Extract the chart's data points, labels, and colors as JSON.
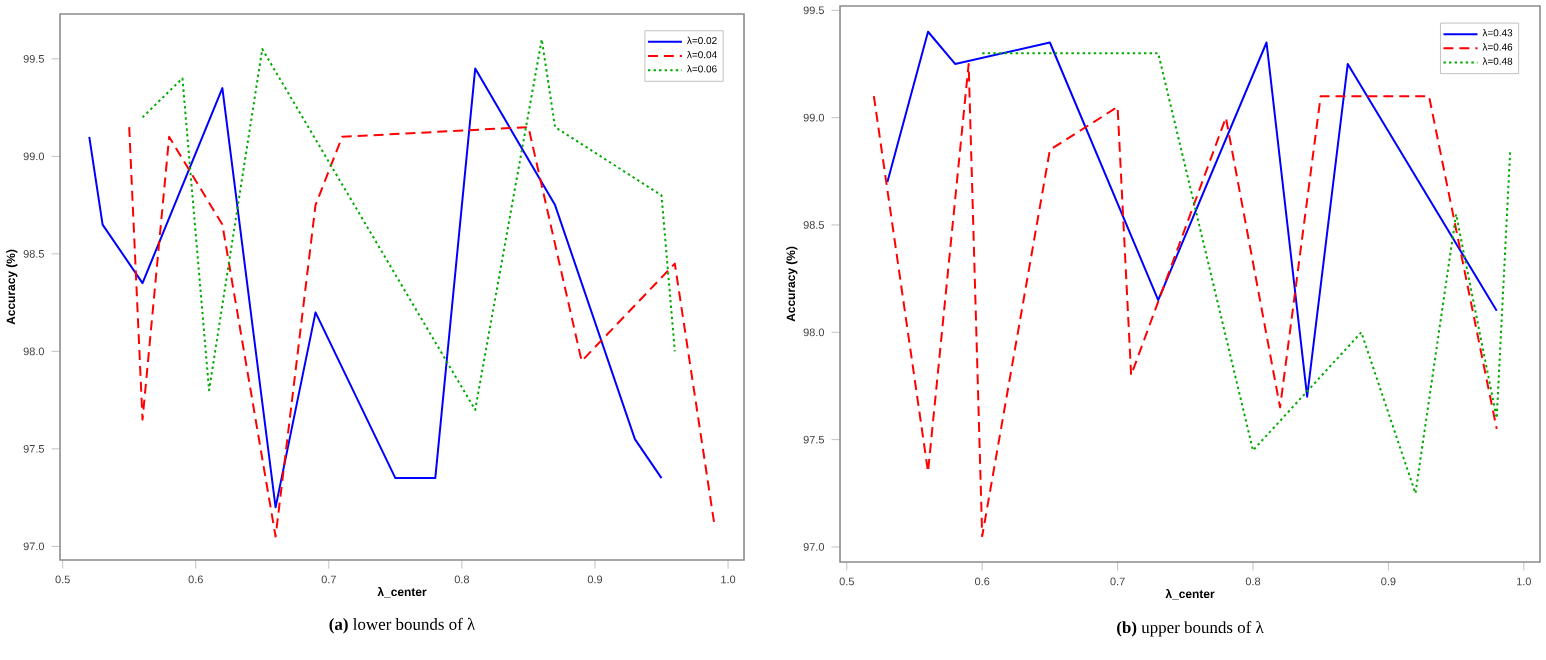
{
  "chart_data": [
    {
      "type": "line",
      "title": "**(a)** lower bounds of  λ",
      "xlabel": "λ_center",
      "ylabel": "Accuracy (%)",
      "xlim": [
        0.498,
        1.012
      ],
      "ylim": [
        96.93,
        99.73
      ],
      "xticks": [
        0.5,
        0.6,
        0.7,
        0.8,
        0.9,
        {
          "value": 1.0,
          "label": "1.0"
        }
      ],
      "yticks": [
        {
          "value": 97.0,
          "label": "97.0"
        },
        97.5,
        {
          "value": 98.0,
          "label": "98.0"
        },
        98.5,
        {
          "value": 99.0,
          "label": "99.0"
        },
        99.5
      ],
      "legend": "top right",
      "grid": false,
      "series": [
        {
          "name": "λ=0.02",
          "color": "#0000ff",
          "line_style": "solid",
          "x": [
            0.52,
            0.53,
            0.56,
            0.62,
            0.66,
            0.69,
            0.75,
            0.78,
            0.81,
            0.87,
            0.93,
            0.95
          ],
          "values": [
            99.1,
            98.65,
            98.35,
            99.35,
            97.2,
            98.2,
            97.35,
            97.35,
            99.45,
            98.75,
            97.55,
            97.35
          ]
        },
        {
          "name": "λ=0.04",
          "color": "#ff0000",
          "line_style": "dashed",
          "x": [
            0.55,
            0.56,
            0.58,
            0.62,
            0.66,
            0.69,
            0.71,
            0.85,
            0.89,
            0.96,
            0.99
          ],
          "values": [
            99.15,
            97.65,
            99.1,
            98.65,
            97.05,
            98.75,
            99.1,
            99.15,
            97.95,
            98.45,
            97.1
          ]
        },
        {
          "name": "λ=0.06",
          "color": "#00aa00",
          "line_style": "dotted",
          "x": [
            0.56,
            0.59,
            0.61,
            0.65,
            0.81,
            0.86,
            0.87,
            0.95,
            0.96
          ],
          "values": [
            99.2,
            99.4,
            97.8,
            99.55,
            97.7,
            99.6,
            99.15,
            98.8,
            98.0
          ]
        }
      ]
    },
    {
      "type": "line",
      "title": "**(b)** upper bounds of  λ",
      "xlabel": "λ_center",
      "ylabel": "Accuracy (%)",
      "xlim": [
        0.495,
        1.012
      ],
      "ylim": [
        96.93,
        99.52
      ],
      "xticks": [
        0.5,
        0.6,
        0.7,
        0.8,
        0.9,
        {
          "value": 1.0,
          "label": "1.0"
        }
      ],
      "yticks": [
        {
          "value": 97.0,
          "label": "97.0"
        },
        97.5,
        {
          "value": 98.0,
          "label": "98.0"
        },
        98.5,
        {
          "value": 99.0,
          "label": "99.0"
        },
        99.5
      ],
      "legend": "top right",
      "grid": false,
      "series": [
        {
          "name": "λ=0.43",
          "color": "#0000ff",
          "line_style": "solid",
          "x": [
            0.53,
            0.56,
            0.58,
            0.65,
            0.73,
            0.81,
            0.84,
            0.87,
            0.98
          ],
          "values": [
            98.7,
            99.4,
            99.25,
            99.35,
            98.15,
            99.35,
            97.7,
            99.25,
            98.1
          ]
        },
        {
          "name": "λ=0.46",
          "color": "#ff0000",
          "line_style": "dashed",
          "x": [
            0.52,
            0.56,
            0.59,
            0.6,
            0.65,
            0.7,
            0.71,
            0.78,
            0.82,
            0.85,
            0.93,
            0.98
          ],
          "values": [
            99.1,
            97.35,
            99.25,
            97.05,
            98.85,
            99.05,
            97.8,
            99.0,
            97.65,
            99.1,
            99.1,
            97.55
          ]
        },
        {
          "name": "λ=0.48",
          "color": "#00aa00",
          "line_style": "dotted",
          "x": [
            0.6,
            0.73,
            0.8,
            0.88,
            0.92,
            0.95,
            0.98,
            0.99
          ],
          "values": [
            99.3,
            99.3,
            97.45,
            98.0,
            97.25,
            98.55,
            97.6,
            98.85
          ]
        }
      ]
    }
  ]
}
